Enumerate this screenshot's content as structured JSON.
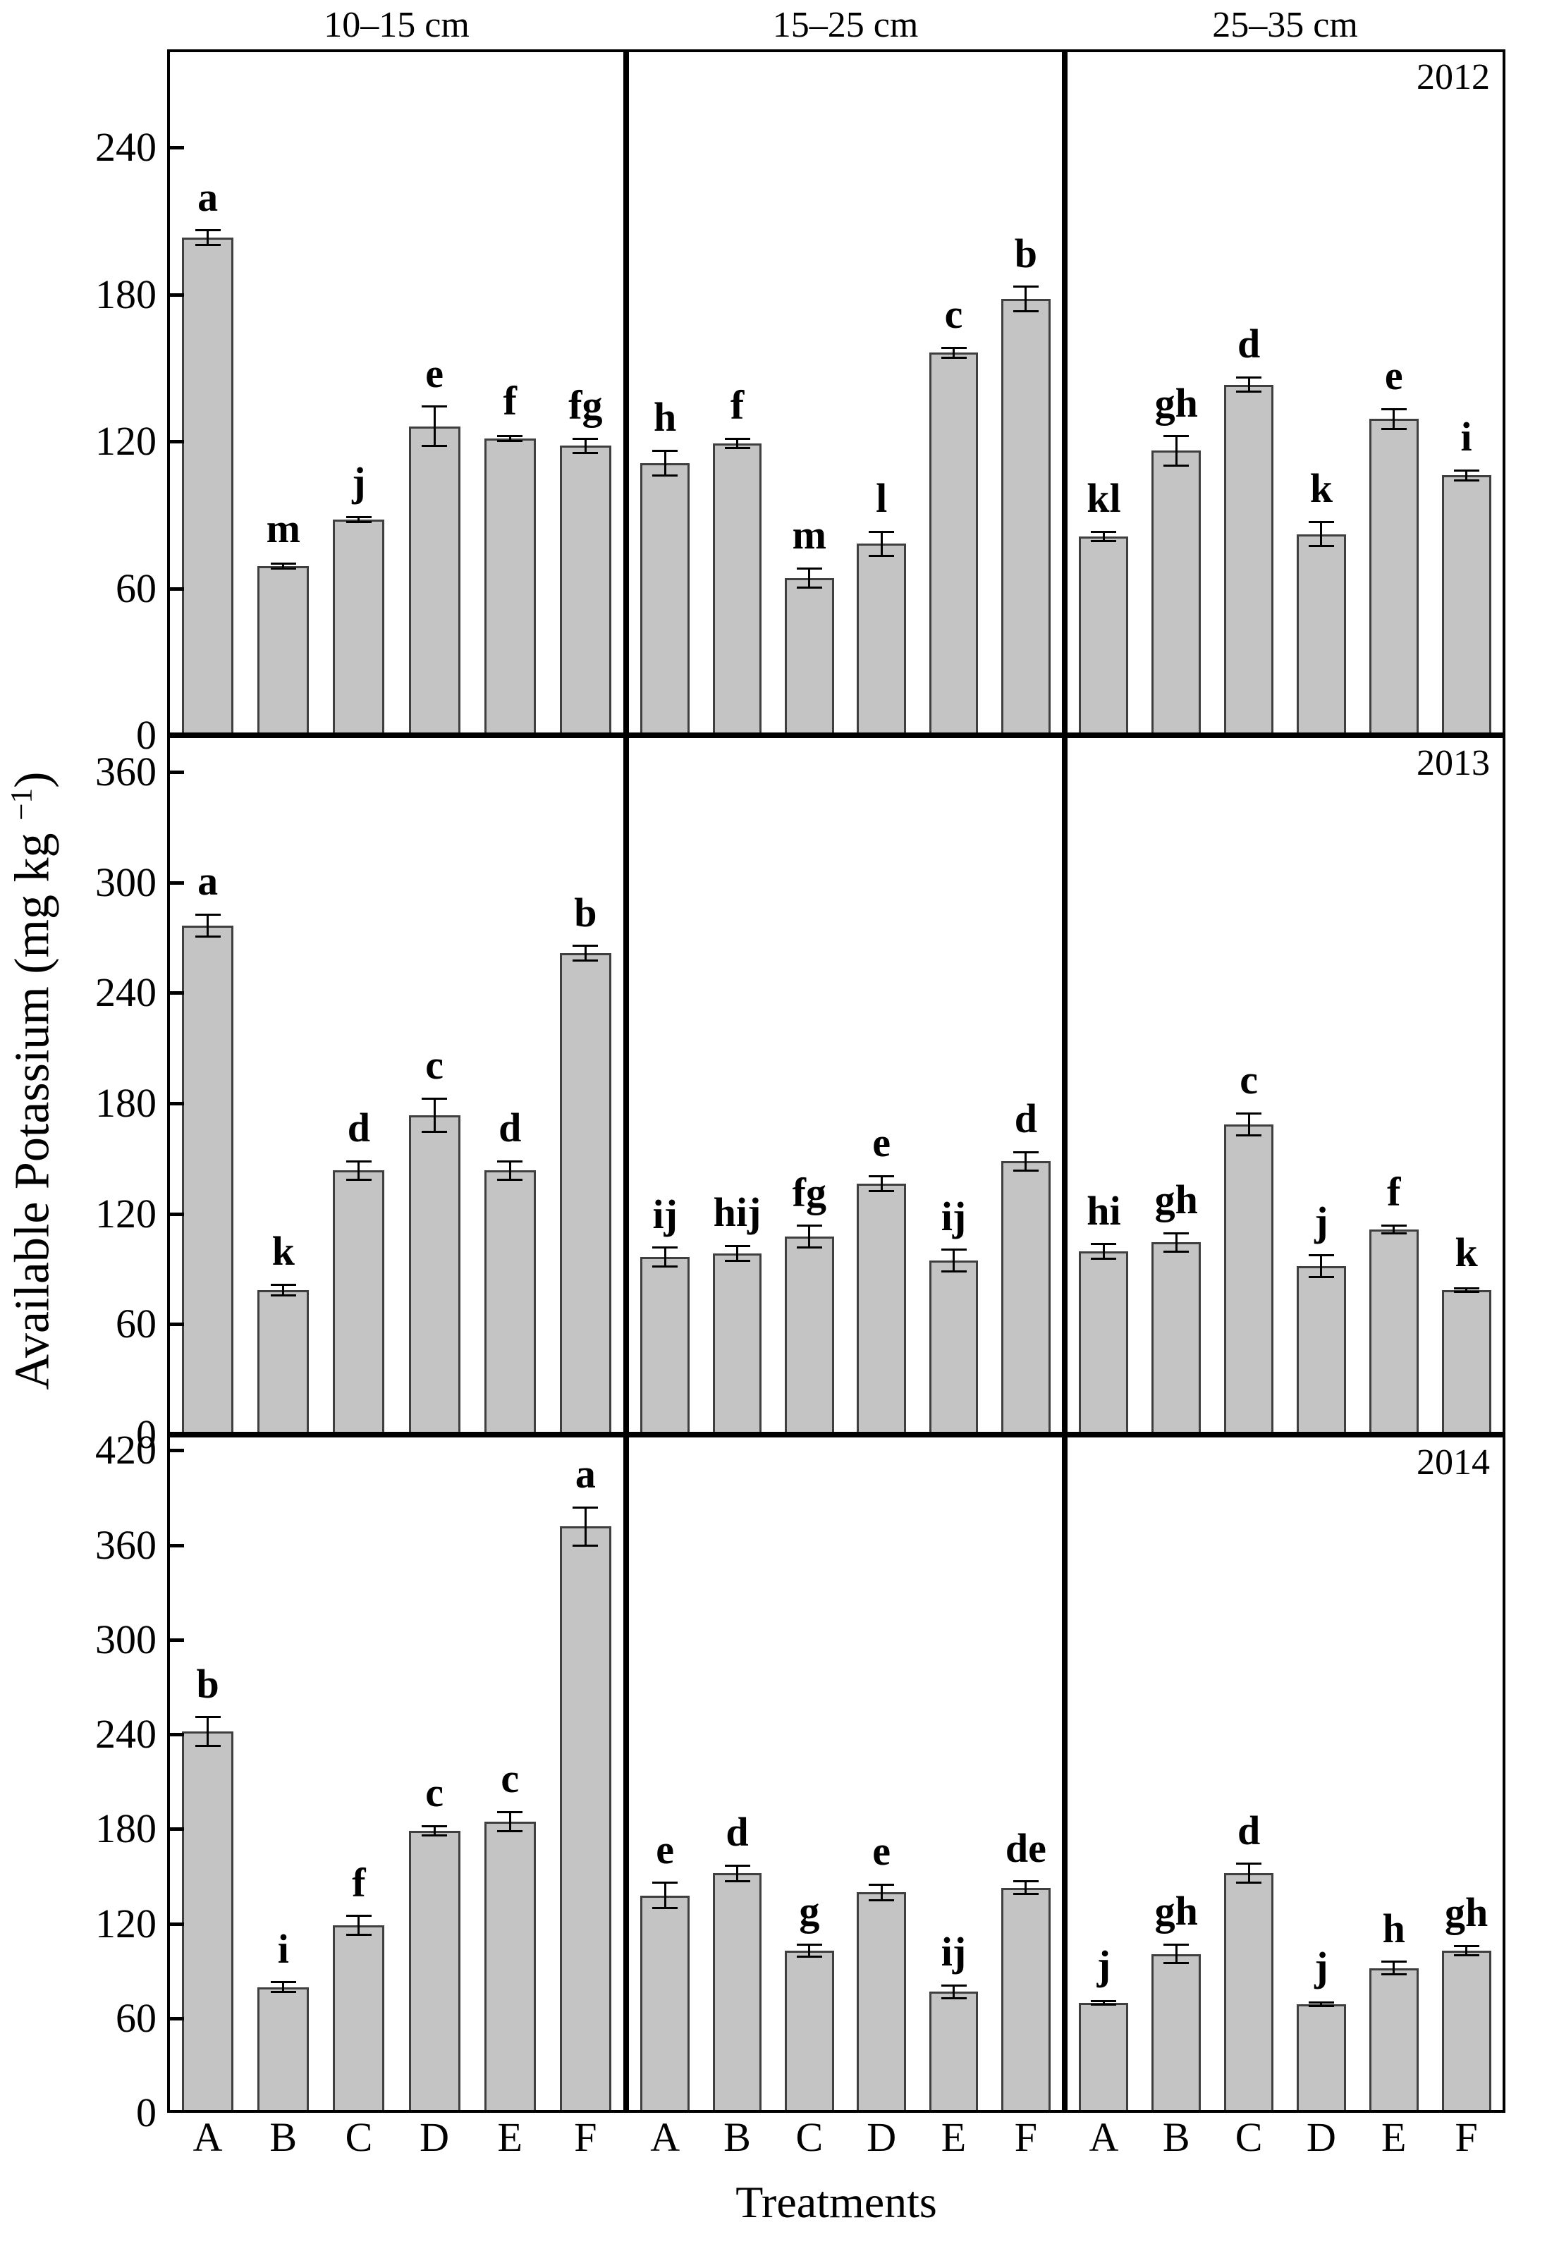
{
  "figure": {
    "column_headers": [
      "10–15 cm",
      "15–25 cm",
      "25–35 cm"
    ],
    "x_axis_label": "Treatments",
    "y_axis_label_main": "Available Potassium (mg kg ",
    "y_axis_label_sup": "−1",
    "y_axis_label_end": ")",
    "bar_fill": "#c4c4c4",
    "bar_stroke": "#3f3f3f",
    "axis_color": "#000000"
  },
  "chart_data": {
    "type": "bar",
    "categories": [
      "A",
      "B",
      "C",
      "D",
      "E",
      "F"
    ],
    "xlabel": "Treatments",
    "ylabel": "Available Potassium (mg kg−1)",
    "columns": [
      "10–15 cm",
      "15–25 cm",
      "25–35 cm"
    ],
    "grid": false,
    "legend": "none",
    "rows": [
      {
        "year": "2012",
        "ylim": [
          0,
          280
        ],
        "yticks": [
          240,
          180,
          120,
          60,
          0
        ],
        "panels": [
          {
            "depth": "10–15 cm",
            "values": [
              202,
              68,
              87,
              125,
              120,
              117
            ],
            "errors": [
              3,
              1,
              1,
              8,
              1,
              3
            ],
            "letters": [
              "a",
              "m",
              "j",
              "e",
              "f",
              "fg"
            ]
          },
          {
            "depth": "15–25 cm",
            "values": [
              110,
              118,
              63,
              77,
              155,
              177
            ],
            "errors": [
              5,
              2,
              4,
              5,
              2,
              5
            ],
            "letters": [
              "h",
              "f",
              "m",
              "l",
              "c",
              "b"
            ]
          },
          {
            "depth": "25–35 cm",
            "values": [
              80,
              115,
              142,
              81,
              128,
              105
            ],
            "errors": [
              2,
              6,
              3,
              5,
              4,
              2
            ],
            "letters": [
              "kl",
              "gh",
              "d",
              "k",
              "e",
              "i"
            ]
          }
        ]
      },
      {
        "year": "2013",
        "ylim": [
          0,
          380
        ],
        "yticks": [
          360,
          300,
          240,
          180,
          120,
          60,
          0
        ],
        "panels": [
          {
            "depth": "10–15 cm",
            "values": [
              275,
              77,
              142,
              172,
              142,
              260
            ],
            "errors": [
              6,
              3,
              5,
              9,
              5,
              4
            ],
            "letters": [
              "a",
              "k",
              "d",
              "c",
              "d",
              "b"
            ]
          },
          {
            "depth": "15–25 cm",
            "values": [
              95,
              97,
              106,
              135,
              93,
              147
            ],
            "errors": [
              5,
              4,
              6,
              4,
              6,
              5
            ],
            "letters": [
              "ij",
              "hij",
              "fg",
              "e",
              "ij",
              "d"
            ]
          },
          {
            "depth": "25–35 cm",
            "values": [
              98,
              103,
              167,
              90,
              110,
              77
            ],
            "errors": [
              4,
              5,
              6,
              6,
              2,
              1
            ],
            "letters": [
              "hi",
              "gh",
              "c",
              "j",
              "f",
              "k"
            ]
          }
        ]
      },
      {
        "year": "2014",
        "ylim": [
          0,
          430
        ],
        "yticks": [
          420,
          360,
          300,
          240,
          180,
          120,
          60,
          0
        ],
        "panels": [
          {
            "depth": "10–15 cm",
            "values": [
              240,
              78,
              117,
              177,
              183,
              370
            ],
            "errors": [
              9,
              3,
              6,
              3,
              6,
              12
            ],
            "letters": [
              "b",
              "i",
              "f",
              "c",
              "c",
              "a"
            ]
          },
          {
            "depth": "15–25 cm",
            "values": [
              136,
              150,
              101,
              138,
              75,
              141
            ],
            "errors": [
              8,
              5,
              4,
              5,
              4,
              4
            ],
            "letters": [
              "e",
              "d",
              "g",
              "e",
              "ij",
              "de"
            ]
          },
          {
            "depth": "25–35 cm",
            "values": [
              68,
              99,
              150,
              67,
              90,
              101
            ],
            "errors": [
              1,
              6,
              6,
              1,
              4,
              3
            ],
            "letters": [
              "j",
              "gh",
              "d",
              "j",
              "h",
              "gh"
            ]
          }
        ]
      }
    ]
  }
}
